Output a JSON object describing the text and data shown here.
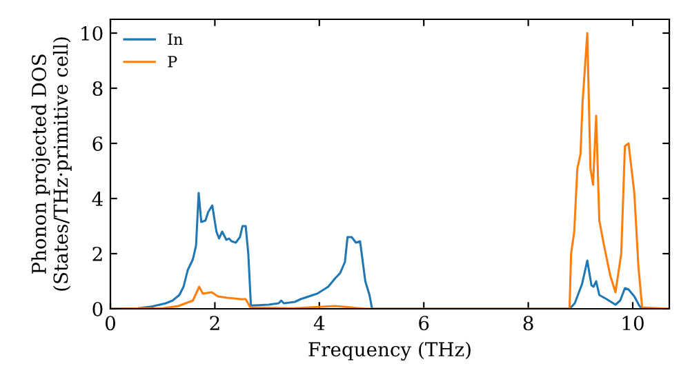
{
  "chart_data": {
    "type": "line",
    "xlabel": "Frequency (THz)",
    "ylabel": "Phonon projected DOS\n(States/THz·primitive cell)",
    "xlim": [
      0,
      10.7
    ],
    "ylim": [
      0,
      10.5
    ],
    "xticks": [
      0,
      2,
      4,
      6,
      8,
      10
    ],
    "yticks": [
      0,
      2,
      4,
      6,
      8,
      10
    ],
    "grid": false,
    "legend": "top left",
    "series": [
      {
        "name": "In",
        "color": "#1f77b4",
        "x": [
          0,
          0.53,
          0.79,
          1.06,
          1.19,
          1.32,
          1.4,
          1.48,
          1.58,
          1.64,
          1.69,
          1.74,
          1.82,
          1.87,
          1.95,
          2.03,
          2.08,
          2.14,
          2.22,
          2.27,
          2.32,
          2.4,
          2.48,
          2.53,
          2.59,
          2.64,
          2.69,
          3.03,
          3.22,
          3.27,
          3.32,
          3.53,
          3.64,
          3.96,
          4.17,
          4.3,
          4.4,
          4.49,
          4.54,
          4.62,
          4.7,
          4.78,
          4.88,
          4.96,
          5.01,
          8.79,
          8.89,
          8.97,
          9.03,
          9.13,
          9.21,
          9.25,
          9.3,
          9.36,
          9.5,
          9.67,
          9.76,
          9.85,
          9.92,
          10.03,
          10.13,
          10.18
        ],
        "values": [
          0,
          0.02,
          0.08,
          0.2,
          0.3,
          0.5,
          0.8,
          1.4,
          1.8,
          2.3,
          4.2,
          3.15,
          3.2,
          3.5,
          3.75,
          2.8,
          2.55,
          2.8,
          2.5,
          2.55,
          2.45,
          2.4,
          2.6,
          3.0,
          3.0,
          2.0,
          0.12,
          0.15,
          0.2,
          0.3,
          0.2,
          0.25,
          0.35,
          0.55,
          0.8,
          1.1,
          1.3,
          1.7,
          2.6,
          2.6,
          2.4,
          2.45,
          1.0,
          0.5,
          0,
          0,
          0.2,
          0.6,
          0.9,
          1.75,
          0.85,
          0.8,
          1.0,
          0.5,
          0.35,
          0.15,
          0.3,
          0.75,
          0.7,
          0.45,
          0.1,
          0
        ]
      },
      {
        "name": "P",
        "color": "#ff7f0e",
        "x": [
          0,
          1.0,
          1.3,
          1.58,
          1.7,
          1.77,
          1.94,
          2.06,
          2.24,
          2.5,
          2.59,
          2.68,
          3.5,
          4.3,
          4.9,
          8.79,
          8.82,
          8.88,
          8.94,
          9.0,
          9.04,
          9.13,
          9.19,
          9.24,
          9.3,
          9.36,
          9.45,
          9.57,
          9.67,
          9.78,
          9.85,
          9.92,
          10.03,
          10.11,
          10.18,
          10.7
        ],
        "values": [
          0,
          0.02,
          0.1,
          0.3,
          0.8,
          0.55,
          0.6,
          0.45,
          0.4,
          0.35,
          0.35,
          0.05,
          0.02,
          0.1,
          0,
          0,
          2.0,
          2.8,
          5.1,
          5.6,
          7.5,
          10.0,
          5.1,
          4.5,
          7.0,
          3.2,
          2.3,
          1.2,
          0.6,
          2.0,
          5.9,
          6.0,
          4.2,
          1.5,
          0.05,
          0
        ]
      }
    ]
  }
}
